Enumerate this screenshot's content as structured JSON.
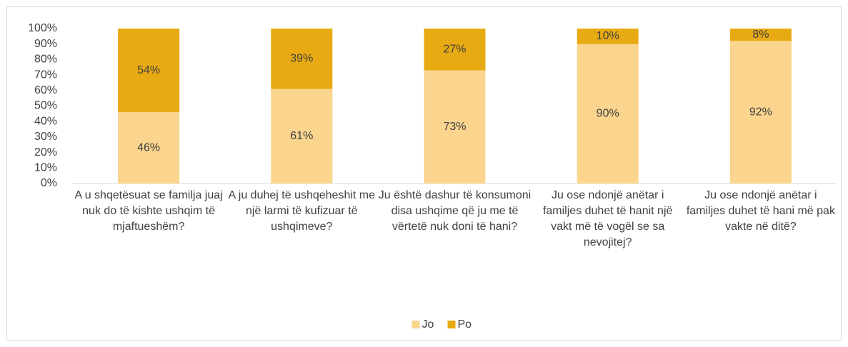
{
  "chart_data": {
    "type": "stacked_bar",
    "categories": [
      "A u shqetësuat se familja juaj nuk do të kishte ushqim të mjaftueshëm?",
      "A ju duhej të ushqeheshit me një larmi të kufizuar të ushqimeve?",
      "Ju është dashur të konsumoni disa ushqime që ju me të vërtetë nuk doni të hani?",
      "Ju ose ndonjë anëtar i familjes duhet të hanit një vakt më të vogël se sa nevojitej?",
      "Ju ose ndonjë anëtar i familjes duhet të hani më pak vakte në ditë?"
    ],
    "series": [
      {
        "name": "Jo",
        "color": "#fbd48e",
        "values": [
          46,
          61,
          73,
          90,
          92
        ],
        "value_labels": [
          "46%",
          "61%",
          "73%",
          "90%",
          "92%"
        ]
      },
      {
        "name": "Po",
        "color": "#e8aa12",
        "values": [
          54,
          39,
          27,
          10,
          8
        ],
        "value_labels": [
          "54%",
          "39%",
          "27%",
          "10%",
          "8%"
        ]
      }
    ],
    "ylim": [
      0,
      100
    ],
    "yticks": [
      {
        "value": 0,
        "label": "0%"
      },
      {
        "value": 10,
        "label": "10%"
      },
      {
        "value": 20,
        "label": "20%"
      },
      {
        "value": 30,
        "label": "30%"
      },
      {
        "value": 40,
        "label": "40%"
      },
      {
        "value": 50,
        "label": "50%"
      },
      {
        "value": 60,
        "label": "60%"
      },
      {
        "value": 70,
        "label": "70%"
      },
      {
        "value": 80,
        "label": "80%"
      },
      {
        "value": 90,
        "label": "90%"
      },
      {
        "value": 100,
        "label": "100%"
      }
    ],
    "grid": false,
    "legend": "bottom"
  }
}
